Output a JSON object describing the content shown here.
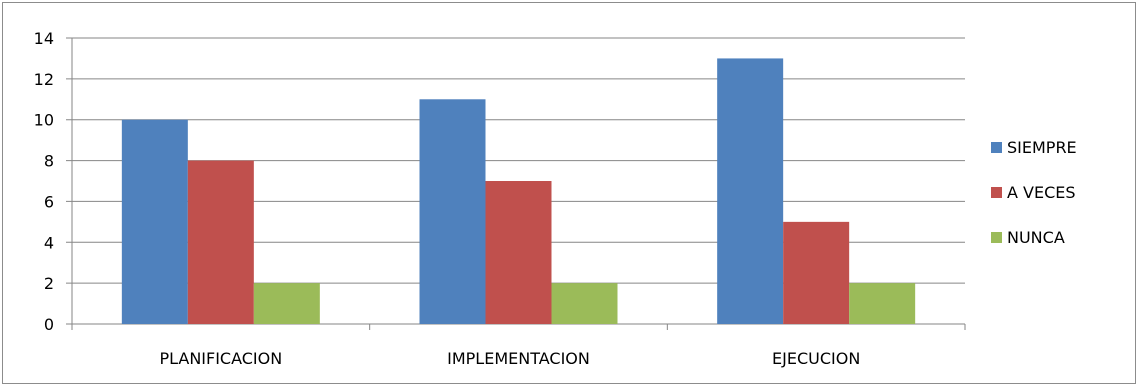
{
  "chart_data": {
    "type": "bar",
    "categories": [
      "PLANIFICACION",
      "IMPLEMENTACION",
      "EJECUCION"
    ],
    "series": [
      {
        "name": "SIEMPRE",
        "values": [
          10,
          11,
          13
        ],
        "color": "#4f81bd"
      },
      {
        "name": "A VECES",
        "values": [
          8,
          7,
          5
        ],
        "color": "#c0504d"
      },
      {
        "name": "NUNCA",
        "values": [
          2,
          2,
          2
        ],
        "color": "#9bbb59"
      }
    ],
    "ylim": [
      0,
      14
    ],
    "yticks": [
      "0",
      "2",
      "4",
      "6",
      "8",
      "10",
      "12",
      "14"
    ],
    "grid": true,
    "legend_position": "right"
  }
}
